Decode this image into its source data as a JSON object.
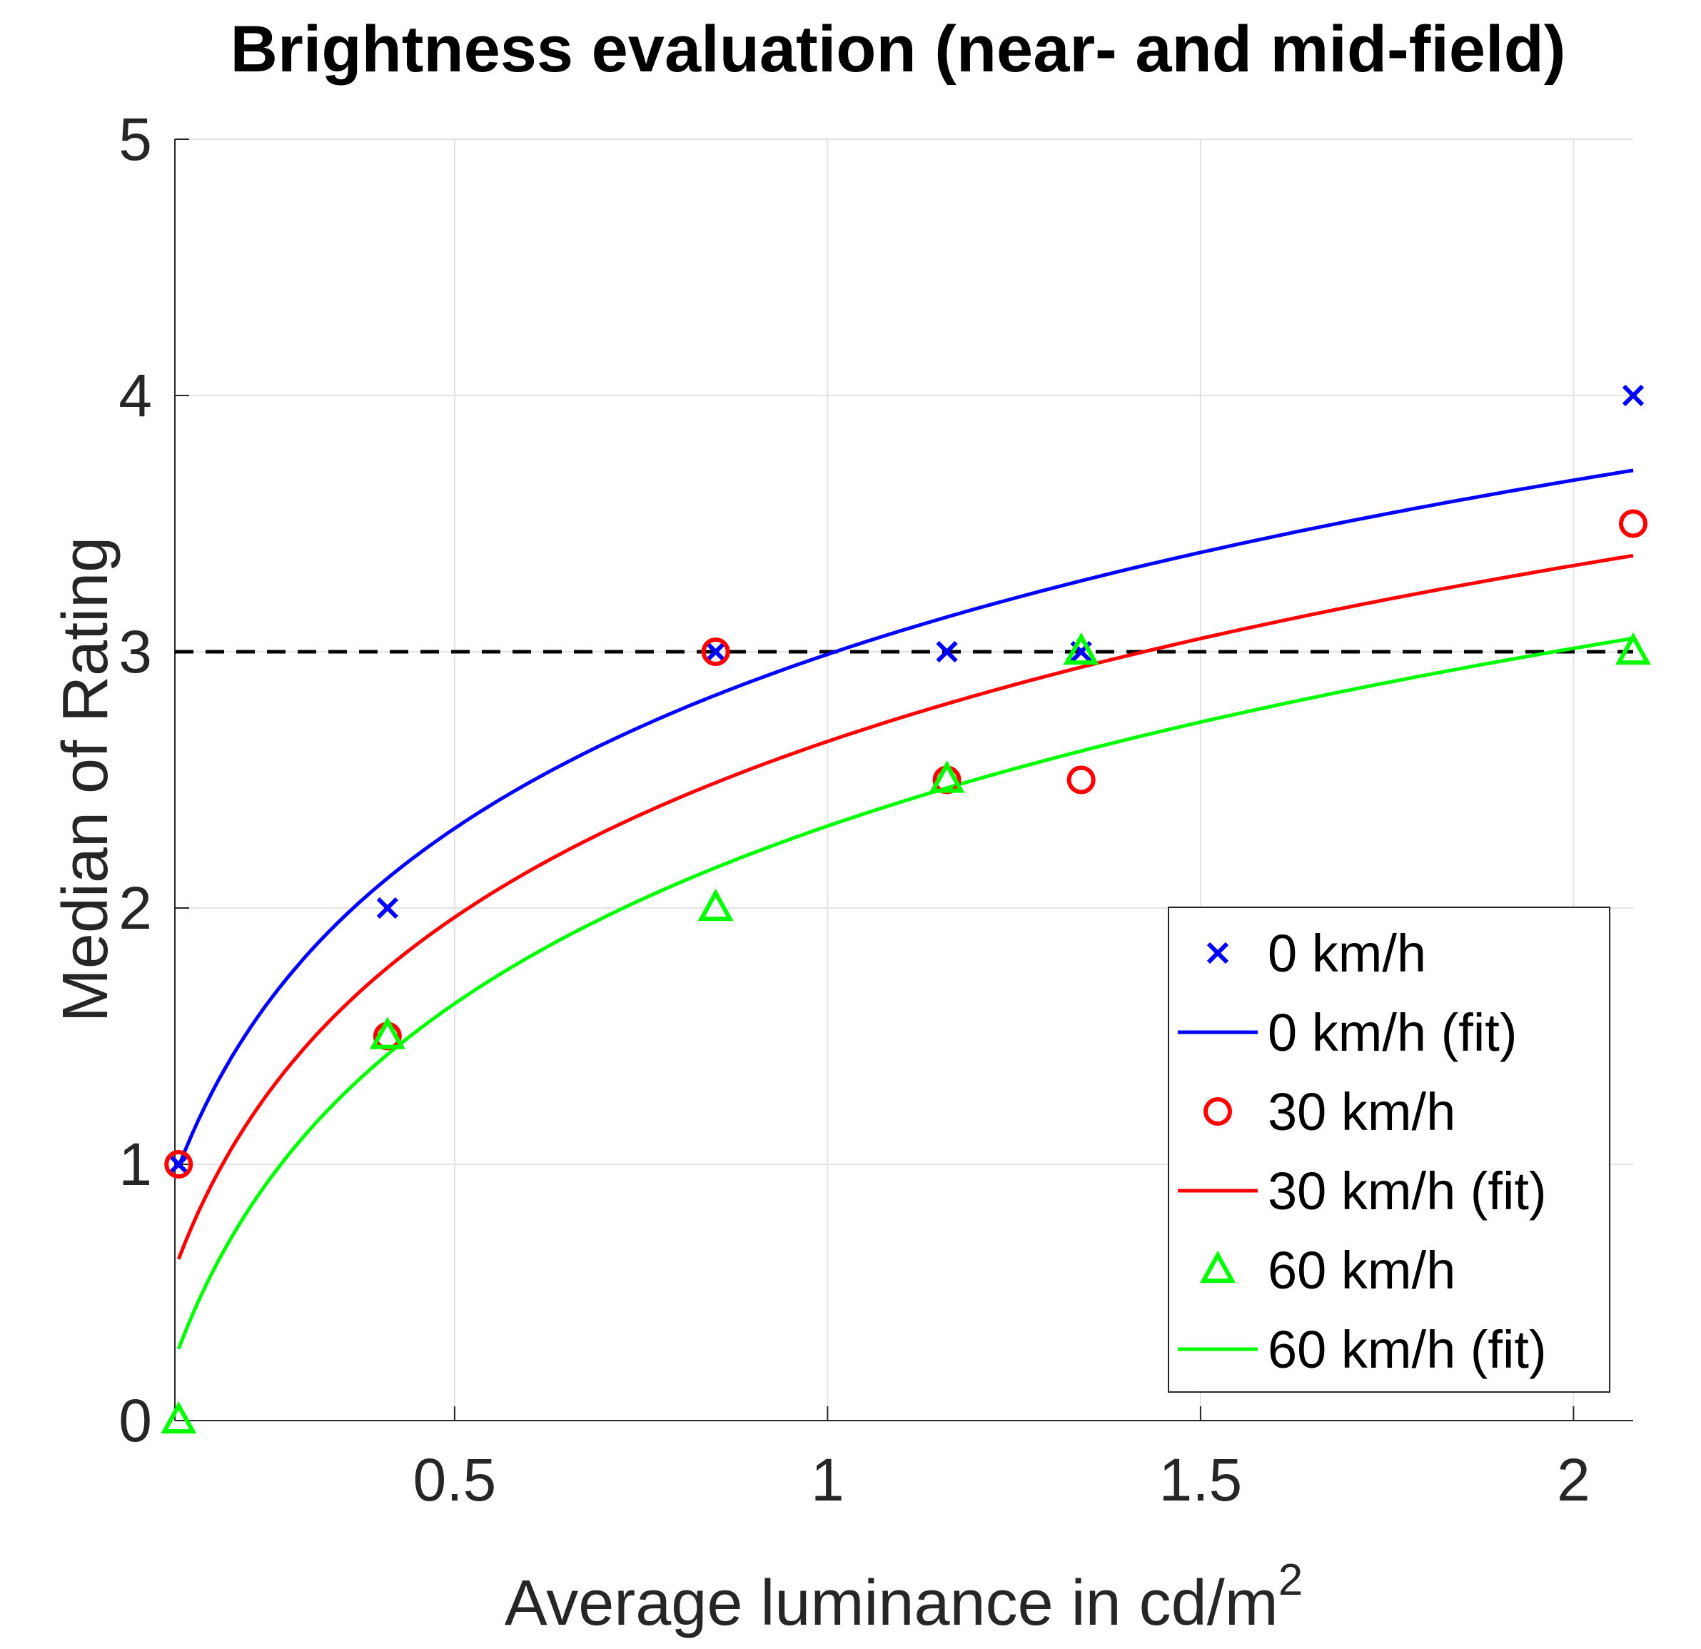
{
  "chart_data": {
    "type": "scatter",
    "title": "Brightness evaluation (near- and mid-field)",
    "xlabel": "Average luminance in cd/m",
    "xlabel_superscript": "2",
    "ylabel": "Median of Rating",
    "xlim": [
      0.125,
      2.08
    ],
    "ylim": [
      0,
      5
    ],
    "xticks": [
      0.5,
      1,
      1.5,
      2
    ],
    "xtick_labels": [
      "0.5",
      "1",
      "1.5",
      "2"
    ],
    "yticks": [
      0,
      1,
      2,
      3,
      4,
      5
    ],
    "ytick_labels": [
      "0",
      "1",
      "2",
      "3",
      "4",
      "5"
    ],
    "grid": true,
    "reference_line": {
      "y": 3,
      "style": "dashed",
      "color": "#000000"
    },
    "legend_position": "bottom-right",
    "series": [
      {
        "name": "0 km/h",
        "kind": "markers",
        "marker": "x",
        "color": "#0000ff",
        "x": [
          0.13,
          0.41,
          0.85,
          1.16,
          1.34,
          2.08
        ],
        "y": [
          1,
          2,
          3,
          3,
          3,
          4
        ]
      },
      {
        "name": "0 km/h (fit)",
        "kind": "fit",
        "color": "#0000ff",
        "model": "a*ln(x)+b",
        "a": 0.98,
        "b": 2.99,
        "x_range": [
          0.13,
          2.08
        ]
      },
      {
        "name": "30 km/h",
        "kind": "markers",
        "marker": "circle",
        "color": "#ff0000",
        "x": [
          0.13,
          0.41,
          0.85,
          1.16,
          1.34,
          2.08
        ],
        "y": [
          1,
          1.5,
          3,
          2.5,
          2.5,
          3.5
        ]
      },
      {
        "name": "30 km/h (fit)",
        "kind": "fit",
        "color": "#ff0000",
        "model": "a*ln(x)+b",
        "a": 0.99,
        "b": 2.65,
        "x_range": [
          0.13,
          2.08
        ]
      },
      {
        "name": "60 km/h",
        "kind": "markers",
        "marker": "triangle",
        "color": "#00ff00",
        "x": [
          0.13,
          0.41,
          0.85,
          1.16,
          1.34,
          2.08
        ],
        "y": [
          0,
          1.5,
          2,
          2.5,
          3,
          3
        ]
      },
      {
        "name": "60 km/h (fit)",
        "kind": "fit",
        "color": "#00ff00",
        "model": "a*ln(x)+b",
        "a": 1.0,
        "b": 2.32,
        "x_range": [
          0.13,
          2.08
        ]
      }
    ]
  }
}
